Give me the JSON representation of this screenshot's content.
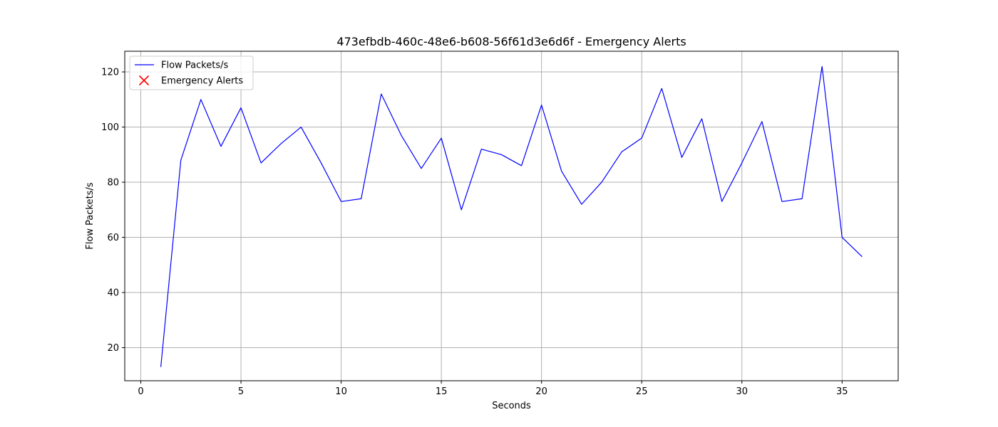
{
  "chart_data": {
    "type": "line",
    "title": "473efbdb-460c-48e6-b608-56f61d3e6d6f - Emergency Alerts",
    "xlabel": "Seconds",
    "ylabel": "Flow Packets/s",
    "xlim": [
      -0.8,
      37.8
    ],
    "ylim": [
      8,
      127.5
    ],
    "xticks": [
      0,
      5,
      10,
      15,
      20,
      25,
      30,
      35
    ],
    "yticks": [
      20,
      40,
      60,
      80,
      100,
      120
    ],
    "grid": true,
    "legend_position": "top-left",
    "series": [
      {
        "name": "Flow Packets/s",
        "color": "#0000ff",
        "x": [
          1,
          2,
          3,
          4,
          5,
          6,
          7,
          8,
          9,
          10,
          11,
          12,
          13,
          14,
          15,
          16,
          17,
          18,
          19,
          20,
          21,
          22,
          23,
          24,
          25,
          26,
          27,
          28,
          29,
          30,
          31,
          32,
          33,
          34,
          35,
          36
        ],
        "values": [
          13,
          88,
          110,
          93,
          107,
          87,
          94,
          100,
          87,
          73,
          74,
          112,
          97,
          85,
          96,
          70,
          92,
          90,
          86,
          108,
          84,
          72,
          80,
          91,
          96,
          114,
          89,
          103,
          73,
          87,
          102,
          73,
          74,
          122,
          60,
          53
        ]
      }
    ],
    "markers": [
      {
        "name": "Emergency Alerts",
        "color": "#ff0000",
        "marker": "x",
        "x": [],
        "values": []
      }
    ]
  }
}
